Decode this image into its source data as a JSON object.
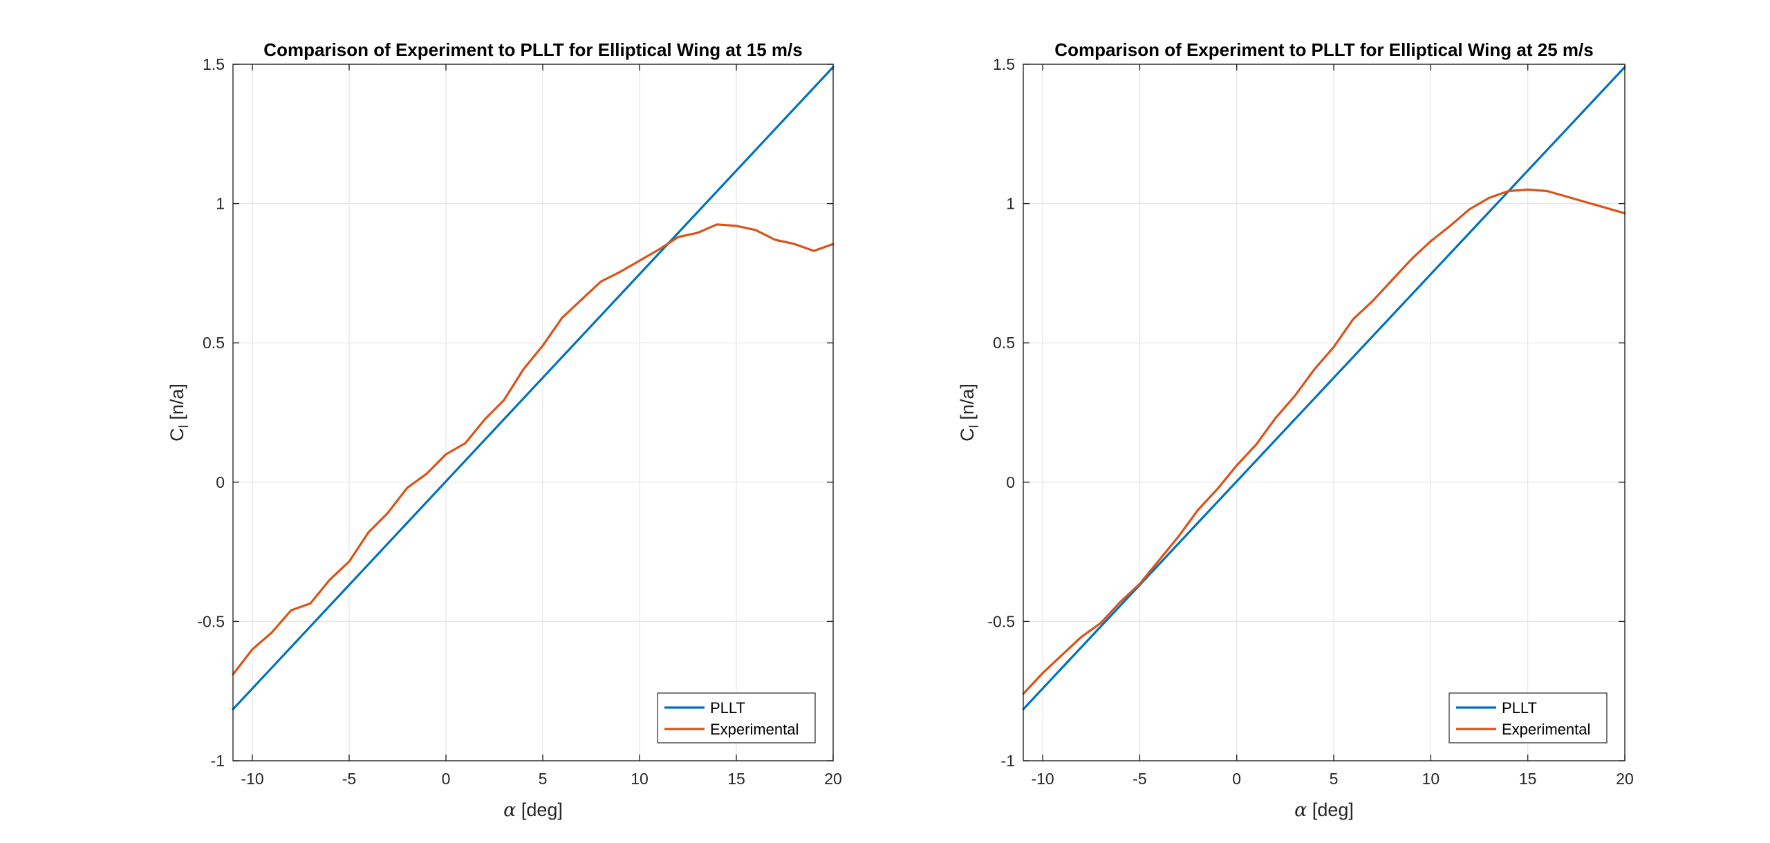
{
  "chart_data": [
    {
      "type": "line",
      "title": "Comparison of Experiment to PLLT for Elliptical Wing at 15 m/s",
      "xlabel_symbol": "α",
      "xlabel_text": " [deg]",
      "ylabel_main": "C",
      "ylabel_sub": "l",
      "ylabel_text": " [n/a]",
      "xlim": [
        -11,
        20
      ],
      "ylim": [
        -1,
        1.5
      ],
      "xticks": [
        -10,
        -5,
        0,
        5,
        10,
        15,
        20
      ],
      "xtick_labels": [
        "-10",
        "-5",
        "0",
        "5",
        "10",
        "15",
        "20"
      ],
      "yticks": [
        -1,
        -0.5,
        0,
        0.5,
        1,
        1.5
      ],
      "ytick_labels": [
        "-1",
        "-0.5",
        "0",
        "0.5",
        "1",
        "1.5"
      ],
      "grid": true,
      "legend": "bottom-right",
      "series": [
        {
          "name": "PLLT",
          "color": "#0072BD",
          "x": [
            -11,
            20
          ],
          "y": [
            -0.815,
            1.49
          ]
        },
        {
          "name": "Experimental",
          "color": "#D95319",
          "x": [
            -11,
            -10,
            -9,
            -8,
            -7,
            -6,
            -5,
            -4,
            -3,
            -2,
            -1,
            0,
            1,
            2,
            3,
            4,
            5,
            6,
            7,
            8,
            9,
            10,
            11,
            12,
            13,
            14,
            15,
            16,
            17,
            18,
            19,
            20
          ],
          "y": [
            -0.69,
            -0.6,
            -0.54,
            -0.46,
            -0.435,
            -0.35,
            -0.285,
            -0.18,
            -0.11,
            -0.02,
            0.03,
            0.1,
            0.14,
            0.225,
            0.295,
            0.405,
            0.49,
            0.59,
            0.655,
            0.72,
            0.755,
            0.795,
            0.835,
            0.88,
            0.895,
            0.925,
            0.92,
            0.905,
            0.87,
            0.855,
            0.83,
            0.855
          ]
        }
      ]
    },
    {
      "type": "line",
      "title": "Comparison of Experiment to PLLT for Elliptical Wing at 25 m/s",
      "xlabel_symbol": "α",
      "xlabel_text": " [deg]",
      "ylabel_main": "C",
      "ylabel_sub": "l",
      "ylabel_text": " [n/a]",
      "xlim": [
        -11,
        20
      ],
      "ylim": [
        -1,
        1.5
      ],
      "xticks": [
        -10,
        -5,
        0,
        5,
        10,
        15,
        20
      ],
      "xtick_labels": [
        "-10",
        "-5",
        "0",
        "5",
        "10",
        "15",
        "20"
      ],
      "yticks": [
        -1,
        -0.5,
        0,
        0.5,
        1,
        1.5
      ],
      "ytick_labels": [
        "-1",
        "-0.5",
        "0",
        "0.5",
        "1",
        "1.5"
      ],
      "grid": true,
      "legend": "bottom-right",
      "series": [
        {
          "name": "PLLT",
          "color": "#0072BD",
          "x": [
            -11,
            20
          ],
          "y": [
            -0.815,
            1.49
          ]
        },
        {
          "name": "Experimental",
          "color": "#D95319",
          "x": [
            -11,
            -10,
            -9,
            -8,
            -7,
            -6,
            -5,
            -4,
            -3,
            -2,
            -1,
            0,
            1,
            2,
            3,
            4,
            5,
            6,
            7,
            8,
            9,
            10,
            11,
            12,
            13,
            14,
            15,
            16,
            17,
            18,
            19,
            20
          ],
          "y": [
            -0.76,
            -0.685,
            -0.62,
            -0.555,
            -0.505,
            -0.43,
            -0.365,
            -0.28,
            -0.195,
            -0.1,
            -0.025,
            0.06,
            0.135,
            0.23,
            0.31,
            0.405,
            0.485,
            0.585,
            0.65,
            0.725,
            0.8,
            0.865,
            0.92,
            0.98,
            1.02,
            1.045,
            1.05,
            1.045,
            1.025,
            1.005,
            0.985,
            0.965
          ]
        }
      ]
    }
  ]
}
